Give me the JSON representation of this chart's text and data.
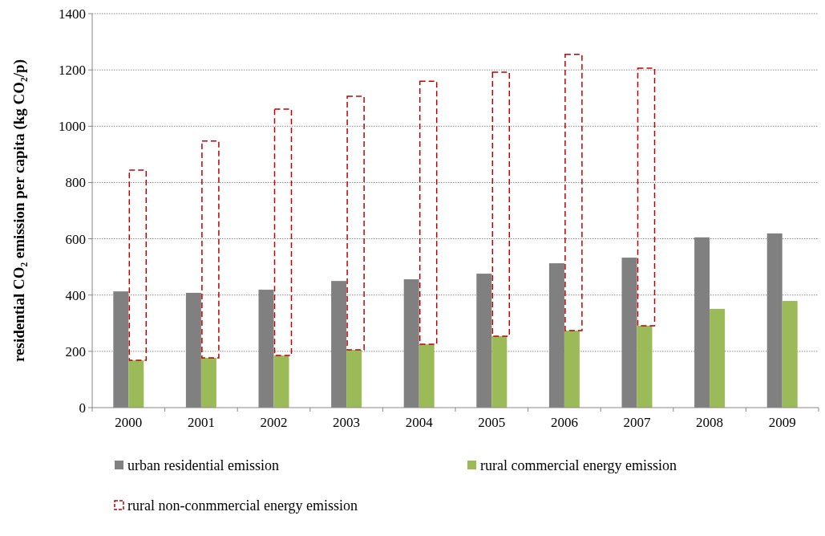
{
  "chart_data": {
    "type": "bar",
    "ylabel": "residential CO₂ emission per capita (kg CO₂/p)",
    "categories": [
      "2000",
      "2001",
      "2002",
      "2003",
      "2004",
      "2005",
      "2006",
      "2007",
      "2008",
      "2009"
    ],
    "series": [
      {
        "name": "urban residential emission",
        "color": "#808080",
        "values": [
          413,
          408,
          419,
          450,
          456,
          476,
          513,
          533,
          605,
          619
        ]
      },
      {
        "name": "rural commercial energy emission",
        "color": "#9bbb59",
        "values": [
          168,
          177,
          185,
          205,
          225,
          254,
          274,
          291,
          351,
          379
        ]
      },
      {
        "name": "rural non-conmmercial energy emission",
        "color": "#c00000",
        "line_style": "dashed",
        "base": [
          168,
          177,
          185,
          205,
          225,
          254,
          274,
          291,
          null,
          null
        ],
        "values": [
          676,
          770,
          876,
          901,
          935,
          938,
          981,
          915,
          null,
          null
        ]
      }
    ],
    "ylim": [
      0,
      1400
    ],
    "yticks": [
      0,
      200,
      400,
      600,
      800,
      1000,
      1200,
      1400
    ],
    "grid": "y",
    "legend": "bottom"
  }
}
